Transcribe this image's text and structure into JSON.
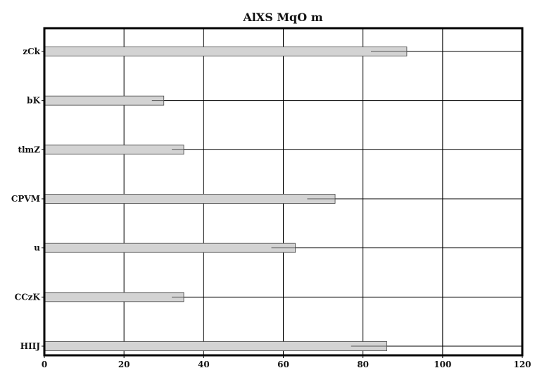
{
  "chart_data": {
    "type": "bar",
    "orientation": "horizontal",
    "title": "AlXS MqO m",
    "xlabel": "",
    "ylabel": "",
    "xlim": [
      0,
      120
    ],
    "x_ticks": [
      0,
      20,
      40,
      60,
      80,
      100,
      120
    ],
    "grid": true,
    "categories": [
      "zCk",
      "bK",
      "tlmZ",
      "CPVM",
      "u",
      "CCzK",
      "HIIJ"
    ],
    "values": [
      91,
      30,
      35,
      73,
      63,
      35,
      86
    ],
    "error_low": [
      82,
      27,
      32,
      66,
      57,
      32,
      77
    ],
    "colors": {
      "bar": "#d3d3d3",
      "bar_edge": "#444444",
      "grid": "#000000"
    }
  }
}
